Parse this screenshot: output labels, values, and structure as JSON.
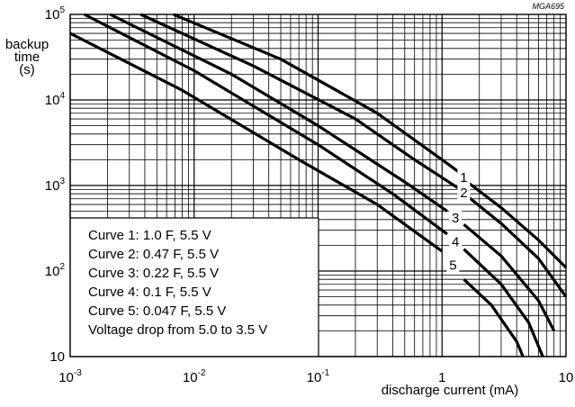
{
  "chart_data": {
    "type": "line",
    "figure_code": "MGA695",
    "xlabel": "discharge current  (mA)",
    "ylabel_lines": [
      "backup",
      "time",
      "(s)"
    ],
    "x_scale": "log",
    "y_scale": "log",
    "xlim": [
      0.001,
      10
    ],
    "ylim": [
      10,
      100000
    ],
    "grid": true,
    "x_ticks": [
      {
        "value": 0.001,
        "base": "10",
        "exp": "-3"
      },
      {
        "value": 0.01,
        "base": "10",
        "exp": "-2"
      },
      {
        "value": 0.1,
        "base": "10",
        "exp": "-1"
      },
      {
        "value": 1,
        "base": "1",
        "exp": ""
      },
      {
        "value": 10,
        "base": "10",
        "exp": ""
      }
    ],
    "y_ticks": [
      {
        "value": 10,
        "base": "10",
        "exp": ""
      },
      {
        "value": 100,
        "base": "10",
        "exp": "2"
      },
      {
        "value": 1000,
        "base": "10",
        "exp": "3"
      },
      {
        "value": 10000,
        "base": "10",
        "exp": "4"
      },
      {
        "value": 100000,
        "base": "10",
        "exp": "5"
      }
    ],
    "legend": {
      "position": "bottom-left",
      "entries": [
        "Curve 1:  1.0 F, 5.5 V",
        "Curve 2:  0.47 F, 5.5 V",
        "Curve 3:  0.22 F, 5.5 V",
        "Curve 4:  0.1 F, 5.5 V",
        "Curve 5:  0.047 F, 5.5 V",
        "Voltage drop from 5.0 to 3.5 V"
      ]
    },
    "series": [
      {
        "label": "1",
        "upper": [
          [
            0.0068,
            100000
          ],
          [
            0.05,
            30000
          ],
          [
            0.3,
            7000
          ],
          [
            1,
            2000
          ],
          [
            1.4,
            1400
          ]
        ],
        "lower": [
          [
            1.6,
            1100
          ],
          [
            3,
            550
          ],
          [
            6,
            230
          ],
          [
            10,
            110
          ]
        ]
      },
      {
        "label": "2",
        "upper": [
          [
            0.0037,
            100000
          ],
          [
            0.03,
            25000
          ],
          [
            0.2,
            6000
          ],
          [
            0.6,
            2000
          ],
          [
            1.4,
            900
          ]
        ],
        "lower": [
          [
            1.6,
            750
          ],
          [
            3,
            360
          ],
          [
            6,
            140
          ],
          [
            10,
            50
          ]
        ]
      },
      {
        "label": "3",
        "upper": [
          [
            0.0021,
            100000
          ],
          [
            0.02,
            20000
          ],
          [
            0.1,
            5000
          ],
          [
            0.5,
            1100
          ],
          [
            1.1,
            500
          ]
        ],
        "lower": [
          [
            1.5,
            350
          ],
          [
            3,
            150
          ],
          [
            6,
            45
          ],
          [
            8,
            20
          ]
        ]
      },
      {
        "label": "4",
        "upper": [
          [
            0.0013,
            100000
          ],
          [
            0.01,
            22000
          ],
          [
            0.1,
            3000
          ],
          [
            0.4,
            800
          ],
          [
            1.1,
            270
          ]
        ],
        "lower": [
          [
            1.5,
            180
          ],
          [
            3,
            70
          ],
          [
            5,
            25
          ],
          [
            6.5,
            10
          ]
        ]
      },
      {
        "label": "5",
        "upper": [
          [
            0.001,
            60000
          ],
          [
            0.008,
            13000
          ],
          [
            0.07,
            2000
          ],
          [
            0.3,
            600
          ],
          [
            1,
            170
          ]
        ],
        "lower": [
          [
            1.5,
            80
          ],
          [
            2.5,
            40
          ],
          [
            4,
            15
          ],
          [
            4.5,
            10
          ]
        ]
      }
    ]
  }
}
